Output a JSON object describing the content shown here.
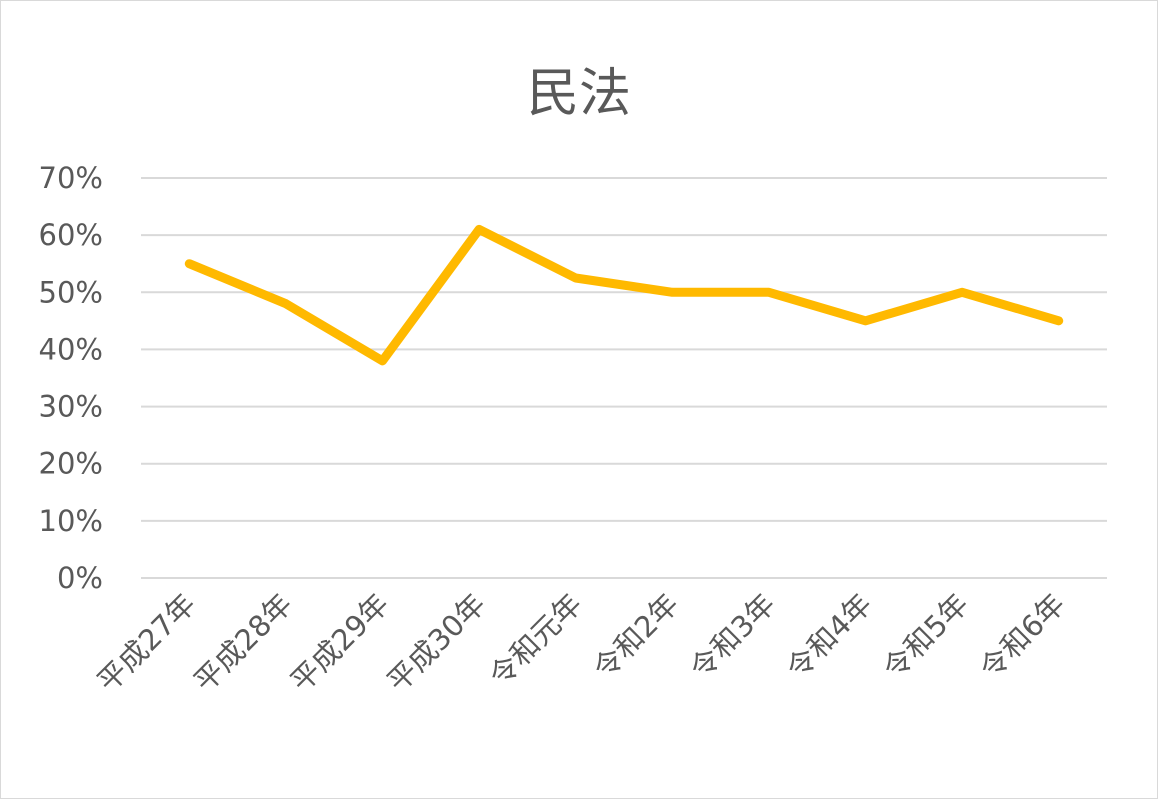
{
  "chart_data": {
    "type": "line",
    "title": "民法",
    "categories": [
      "平成27年",
      "平成28年",
      "平成29年",
      "平成30年",
      "令和元年",
      "令和2年",
      "令和3年",
      "令和4年",
      "令和5年",
      "令和6年"
    ],
    "series": [
      {
        "values": [
          55,
          48,
          38,
          61,
          52.5,
          50,
          50,
          45,
          50,
          45
        ],
        "color": "#FFB900"
      }
    ],
    "ylim": [
      0,
      70
    ],
    "yticks": [
      "0%",
      "10%",
      "20%",
      "30%",
      "40%",
      "50%",
      "60%",
      "70%"
    ],
    "grid": true,
    "legend": "none",
    "xlabel": "",
    "ylabel": ""
  }
}
